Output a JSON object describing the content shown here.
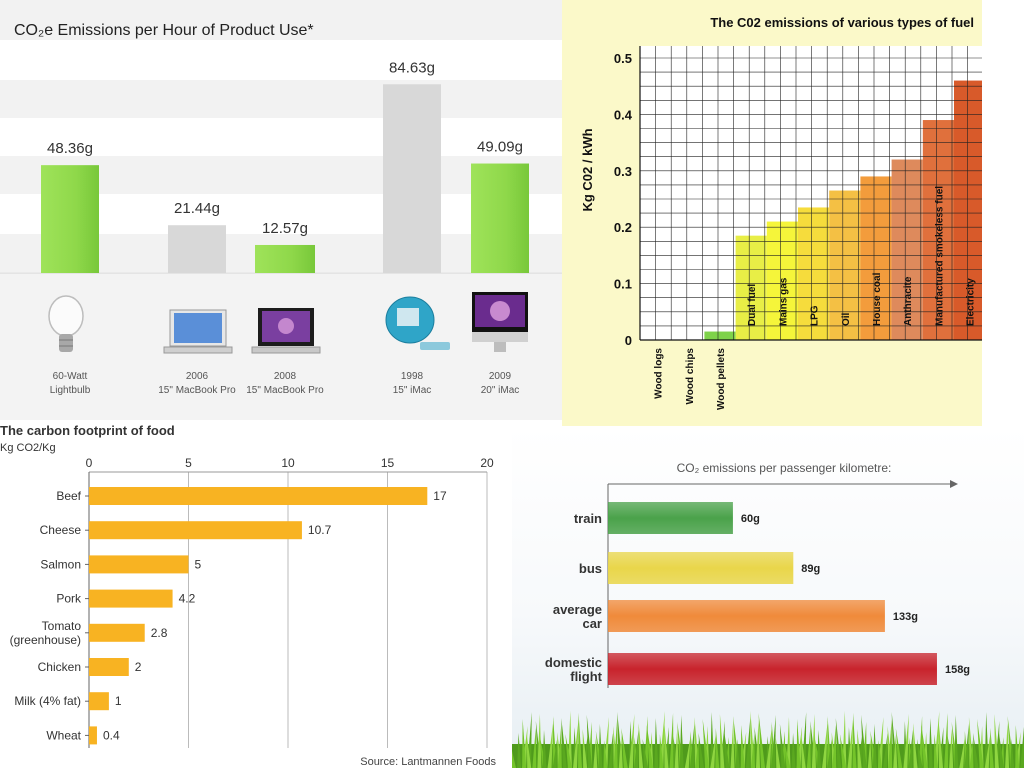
{
  "colors": {
    "green_bar": "#8fd84a",
    "gray_bar": "#d8d8d8",
    "food_bar": "#f8b322",
    "train": "#4aa24a",
    "bus": "#e9d64a",
    "car": "#f08a3a",
    "flight": "#c8232c"
  },
  "chart_data": [
    {
      "id": "product-use",
      "type": "bar",
      "title": "CO₂e Emissions per Hour of Product Use*",
      "categories": [
        "60-Watt Lightbulb",
        "2006 15\" MacBook Pro",
        "2008 15\" MacBook Pro",
        "1998 15\" iMac",
        "2009 20\" iMac"
      ],
      "category_lines": [
        [
          "60-Watt",
          "Lightbulb"
        ],
        [
          "2006",
          "15\" MacBook Pro"
        ],
        [
          "2008",
          "15\" MacBook Pro"
        ],
        [
          "1998",
          "15\" iMac"
        ],
        [
          "2009",
          "20\" iMac"
        ]
      ],
      "values": [
        48.36,
        21.44,
        12.57,
        84.63,
        49.09
      ],
      "labels": [
        "48.36g",
        "21.44g",
        "12.57g",
        "84.63g",
        "49.09g"
      ],
      "highlight": [
        true,
        false,
        true,
        false,
        true
      ],
      "icons": [
        "lightbulb-icon",
        "macbook-2006-icon",
        "macbook-2008-icon",
        "imac-1998-icon",
        "imac-2009-icon"
      ],
      "unit": "g",
      "ylim": [
        0,
        100
      ]
    },
    {
      "id": "fuel",
      "type": "bar",
      "title": "The C02 emissions of various types of fuel",
      "ylabel": "Kg C02 / kWh",
      "categories": [
        "Wood logs",
        "Wood chips",
        "Wood pellets",
        "Dual fuel",
        "Mains gas",
        "LPG",
        "Oil",
        "House coal",
        "Anthracite",
        "Manufactured smokeless fuel",
        "Electricity"
      ],
      "values": [
        0.0,
        0.0,
        0.015,
        0.185,
        0.21,
        0.235,
        0.265,
        0.29,
        0.32,
        0.39,
        0.46
      ],
      "bar_colors": [
        "#6fcc3c",
        "#6fcc3c",
        "#7ed24a",
        "#e8ee46",
        "#f5f53a",
        "#f6dc3c",
        "#f4c044",
        "#f39c3c",
        "#de8a5c",
        "#e0703c",
        "#d85a2a"
      ],
      "yticks": [
        0,
        0.1,
        0.2,
        0.3,
        0.4,
        0.5
      ],
      "ytick_labels": [
        "0",
        "0.1",
        "0.2",
        "0.3",
        "0.4",
        "0.5"
      ],
      "ylim": [
        0,
        0.5
      ],
      "grid": true
    },
    {
      "id": "food",
      "type": "bar",
      "orientation": "horizontal",
      "title": "The carbon footprint of food",
      "subtitle": "Kg CO2/Kg",
      "categories": [
        "Beef",
        "Cheese",
        "Salmon",
        "Pork",
        "Tomato (greenhouse)",
        "Chicken",
        "Milk (4% fat)",
        "Wheat"
      ],
      "category_lines": [
        [
          "Beef"
        ],
        [
          "Cheese"
        ],
        [
          "Salmon"
        ],
        [
          "Pork"
        ],
        [
          "Tomato",
          "(greenhouse)"
        ],
        [
          "Chicken"
        ],
        [
          "Milk (4% fat)"
        ],
        [
          "Wheat"
        ]
      ],
      "values": [
        17,
        10.7,
        5,
        4.2,
        2.8,
        2,
        1,
        0.4
      ],
      "labels": [
        "17",
        "10.7",
        "5",
        "4.2",
        "2.8",
        "2",
        "1",
        "0.4"
      ],
      "xticks": [
        0,
        5,
        10,
        15,
        20
      ],
      "xtick_labels": [
        "0",
        "5",
        "10",
        "15",
        "20"
      ],
      "xlim": [
        0,
        20
      ],
      "grid": true,
      "source": "Source: Lantmannen Foods"
    },
    {
      "id": "transport",
      "type": "bar",
      "orientation": "horizontal",
      "title": "CO₂ emissions per passenger kilometre:",
      "categories": [
        "train",
        "bus",
        "average car",
        "domestic flight"
      ],
      "category_lines": [
        [
          "train"
        ],
        [
          "bus"
        ],
        [
          "average",
          "car"
        ],
        [
          "domestic",
          "flight"
        ]
      ],
      "values": [
        60,
        89,
        133,
        158
      ],
      "labels": [
        "60g",
        "89g",
        "133g",
        "158g"
      ],
      "unit": "g"
    }
  ]
}
